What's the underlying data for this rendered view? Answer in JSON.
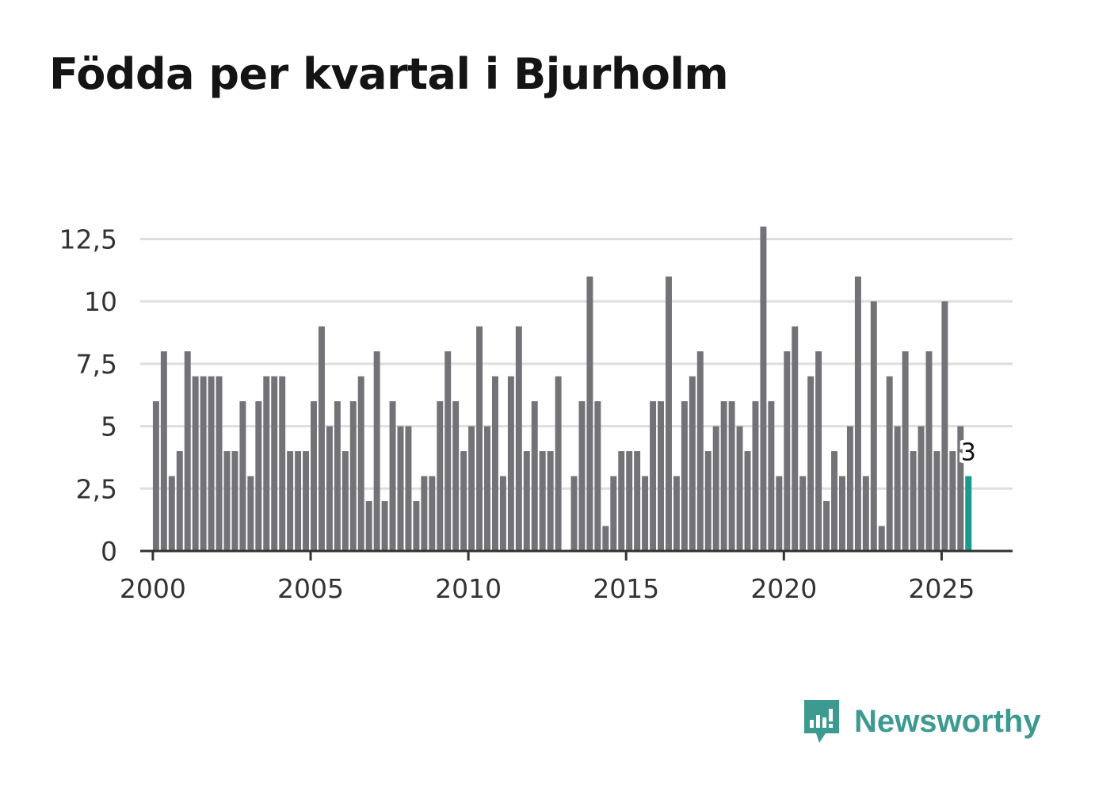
{
  "chart_data": {
    "type": "bar",
    "title": "Födda per kvartal i Bjurholm",
    "xlabel": "",
    "ylabel": "",
    "ylim": [
      0,
      13.5
    ],
    "xlim": [
      1999.6,
      2027.25
    ],
    "y_ticks": [
      0,
      2.5,
      5,
      7.5,
      10,
      12.5
    ],
    "y_tick_labels": [
      "0",
      "2,5",
      "5",
      "7,5",
      "10",
      "12,5"
    ],
    "x_ticks": [
      2000,
      2005,
      2010,
      2015,
      2020,
      2025
    ],
    "x_tick_labels": [
      "2000",
      "2005",
      "2010",
      "2015",
      "2020",
      "2025"
    ],
    "start_year": 2000,
    "quarters_per_year": 4,
    "values": [
      6,
      8,
      3,
      4,
      8,
      7,
      7,
      7,
      7,
      4,
      4,
      6,
      3,
      6,
      7,
      7,
      7,
      4,
      4,
      4,
      6,
      9,
      5,
      6,
      4,
      6,
      7,
      2,
      8,
      2,
      6,
      5,
      5,
      2,
      3,
      3,
      6,
      8,
      6,
      4,
      5,
      9,
      5,
      7,
      3,
      7,
      9,
      4,
      6,
      4,
      4,
      7,
      0,
      3,
      6,
      11,
      6,
      1,
      3,
      4,
      4,
      4,
      3,
      6,
      6,
      11,
      3,
      6,
      7,
      8,
      4,
      5,
      6,
      6,
      5,
      4,
      6,
      13,
      6,
      3,
      8,
      9,
      3,
      7,
      8,
      2,
      4,
      3,
      5,
      11,
      3,
      10,
      1,
      7,
      5,
      8,
      4,
      5,
      8,
      4,
      10,
      4,
      5,
      3
    ],
    "highlight_index": 103,
    "highlight_label": "3",
    "colors": {
      "bar": "#737377",
      "highlight": "#1a9a8a",
      "grid": "#dedede",
      "axis": "#333333"
    }
  },
  "brand": {
    "name": "Newsworthy",
    "color": "#3d9a91",
    "icon": "newsworthy-logo-icon"
  }
}
